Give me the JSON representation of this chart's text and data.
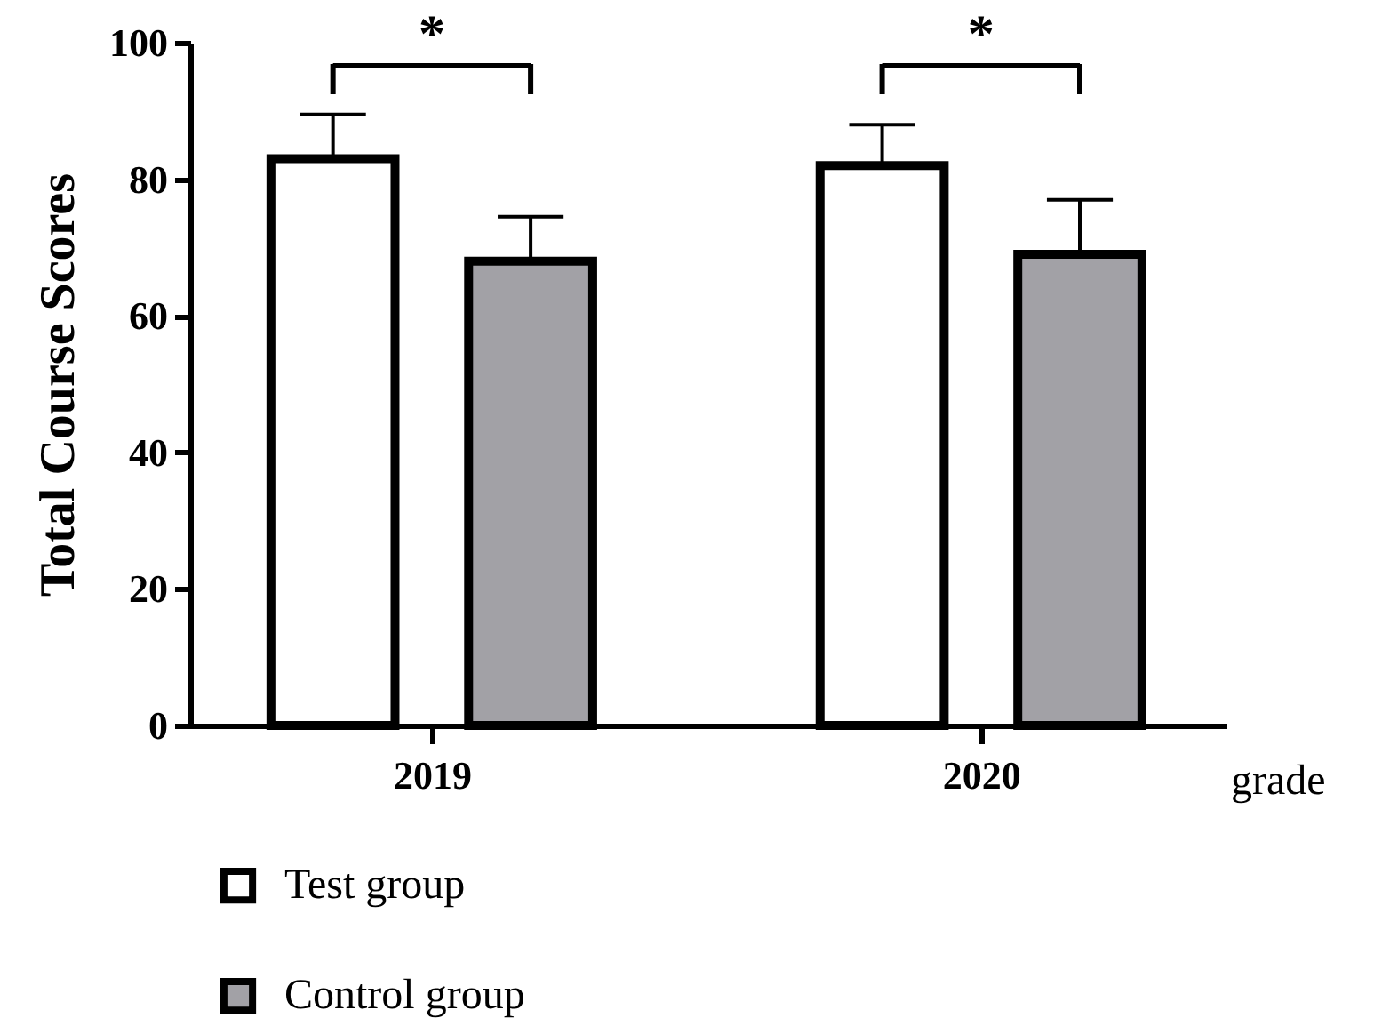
{
  "chart_data": {
    "type": "bar",
    "xlabel": "grade",
    "ylabel": "Total Course Scores",
    "categories": [
      "2019",
      "2020"
    ],
    "series": [
      {
        "name": "Test group",
        "color": "#ffffff",
        "values": [
          83,
          82
        ],
        "errors": [
          6.5,
          6
        ]
      },
      {
        "name": "Control group",
        "color": "#a2a1a6",
        "values": [
          68,
          69
        ],
        "errors": [
          6.5,
          8
        ]
      }
    ],
    "ylim": [
      0,
      100
    ],
    "yticks": [
      0,
      20,
      40,
      60,
      80,
      100
    ],
    "grid": false,
    "legend": "bottom",
    "annotations": [
      "*",
      "*"
    ]
  }
}
